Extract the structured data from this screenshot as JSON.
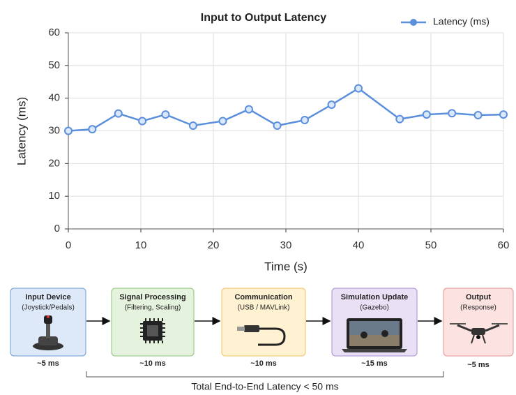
{
  "chart_data": {
    "type": "line",
    "title": "Input to Output Latency",
    "xlabel": "Time (s)",
    "ylabel": "Latency (ms)",
    "x": [
      0,
      3.3,
      6.9,
      10.2,
      13.4,
      17.2,
      21.3,
      24.9,
      28.8,
      32.6,
      36.3,
      40,
      45.7,
      49.4,
      52.9,
      56.5,
      60
    ],
    "series": [
      {
        "name": "Latency (ms)",
        "color": "#5b8fdc",
        "values": [
          30,
          30.5,
          35.3,
          33,
          35,
          31.6,
          33,
          36.6,
          31.6,
          33.3,
          38,
          43,
          33.6,
          35,
          35.4,
          34.8,
          35
        ]
      }
    ],
    "xlim": [
      0,
      60
    ],
    "xticks": [
      0,
      10,
      20,
      30,
      40,
      50,
      60
    ],
    "ylim": [
      0,
      60
    ],
    "yticks": [
      0,
      10,
      20,
      30,
      40,
      50,
      60
    ],
    "grid": true,
    "legend": "upper right"
  },
  "diagram": {
    "nodes": [
      {
        "title": "Input Device",
        "subtitle": "(Joystick/Pedals)",
        "latency": "~5 ms"
      },
      {
        "title": "Signal Processing",
        "subtitle": "(Filtering, Scaling)",
        "latency": "~10 ms"
      },
      {
        "title": "Communication",
        "subtitle": "(USB / MAVLink)",
        "latency": "~10 ms"
      },
      {
        "title": "Simulation Update",
        "subtitle": "(Gazebo)",
        "latency": "~15 ms"
      },
      {
        "title": "Output",
        "subtitle": "(Response)",
        "latency": "~5 ms"
      }
    ],
    "total": "Total End-to-End Latency < 50 ms"
  }
}
